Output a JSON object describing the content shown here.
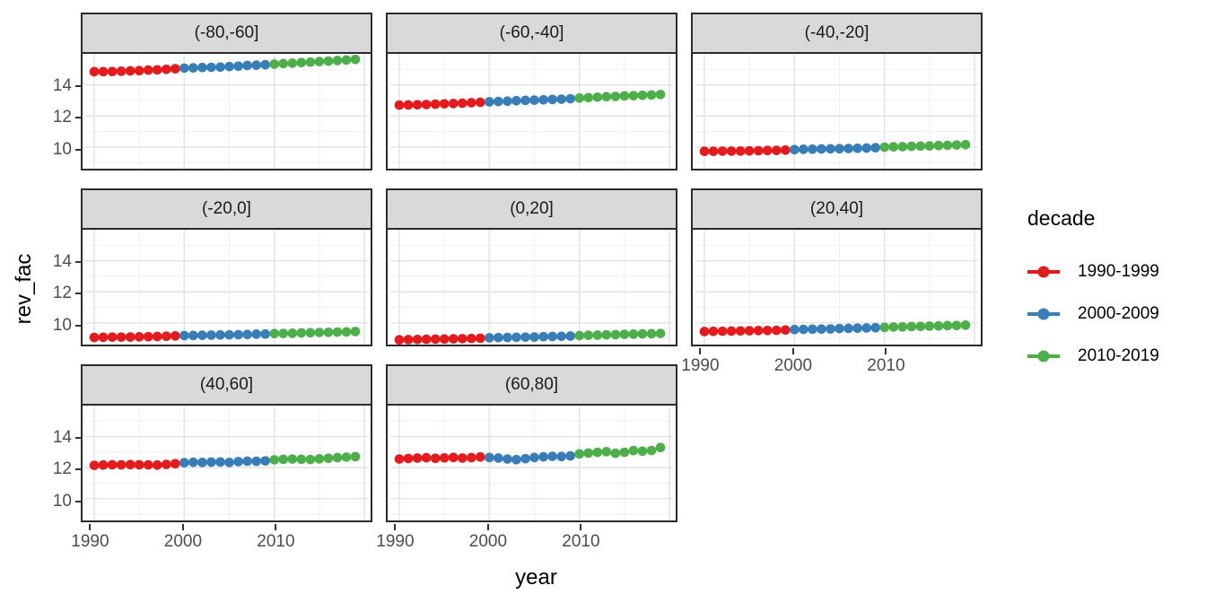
{
  "axes": {
    "x_label": "year",
    "y_label": "rev_fac",
    "x_tick_labels": [
      "1990",
      "2000",
      "2010"
    ],
    "y_tick_labels": [
      "14",
      "12",
      "10"
    ]
  },
  "legend": {
    "title": "decade",
    "entries": [
      {
        "label": "1990-1999",
        "color": "#E41A1C"
      },
      {
        "label": "2000-2009",
        "color": "#377EB8"
      },
      {
        "label": "2010-2019",
        "color": "#4DAF4A"
      }
    ]
  },
  "style": {
    "strip_fill": "#d9d9d9",
    "panel_border": "#2b2b2b",
    "grid_major_color": "#e4e4e4",
    "grid_minor_color": "#f1f1f1",
    "tick_label_color": "#4d4d4d",
    "point_red": "#E41A1C",
    "point_blue": "#377EB8",
    "point_green": "#4DAF4A"
  },
  "chart_data": {
    "type": "scatter",
    "title": "",
    "xlabel": "year",
    "ylabel": "rev_fac",
    "legend_title": "decade",
    "legend_position": "right",
    "grid": true,
    "x": [
      1990,
      1991,
      1992,
      1993,
      1994,
      1995,
      1996,
      1997,
      1998,
      1999,
      2000,
      2001,
      2002,
      2003,
      2004,
      2005,
      2006,
      2007,
      2008,
      2009,
      2010,
      2011,
      2012,
      2013,
      2014,
      2015,
      2016,
      2017,
      2018,
      2019
    ],
    "x_ticks": [
      1990,
      2000,
      2010
    ],
    "y_ticks": [
      10,
      12,
      14
    ],
    "x_major_gridlines": [
      1990,
      2000,
      2010,
      2020
    ],
    "x_minor_gridlines": [
      1995,
      2005,
      2015
    ],
    "y_major_gridlines": [
      10,
      12,
      14
    ],
    "y_minor_gridlines": [
      9,
      11,
      13,
      15
    ],
    "xlim": [
      1989.0,
      2020.4
    ],
    "ylim": [
      8.6,
      16.0
    ],
    "decade_groups": [
      {
        "name": "1990-1999",
        "years": [
          1990,
          1999
        ],
        "color": "#E41A1C"
      },
      {
        "name": "2000-2009",
        "years": [
          2000,
          2009
        ],
        "color": "#377EB8"
      },
      {
        "name": "2010-2019",
        "years": [
          2010,
          2019
        ],
        "color": "#4DAF4A"
      }
    ],
    "facets": [
      {
        "label": "(-80,-60]",
        "values": [
          14.85,
          14.85,
          14.86,
          14.88,
          14.9,
          14.92,
          14.95,
          14.97,
          15.0,
          15.04,
          15.08,
          15.1,
          15.12,
          15.13,
          15.15,
          15.18,
          15.21,
          15.25,
          15.27,
          15.3,
          15.34,
          15.37,
          15.4,
          15.44,
          15.47,
          15.5,
          15.53,
          15.57,
          15.6,
          15.64
        ]
      },
      {
        "label": "(-60,-40]",
        "values": [
          12.7,
          12.71,
          12.72,
          12.74,
          12.76,
          12.78,
          12.8,
          12.82,
          12.85,
          12.88,
          12.91,
          12.93,
          12.95,
          12.98,
          13.0,
          13.02,
          13.04,
          13.06,
          13.08,
          13.11,
          13.15,
          13.18,
          13.21,
          13.24,
          13.26,
          13.29,
          13.31,
          13.33,
          13.35,
          13.38
        ]
      },
      {
        "label": "(-40,-20]",
        "values": [
          9.72,
          9.72,
          9.73,
          9.73,
          9.74,
          9.75,
          9.76,
          9.77,
          9.78,
          9.8,
          9.83,
          9.85,
          9.86,
          9.87,
          9.88,
          9.89,
          9.9,
          9.92,
          9.93,
          9.95,
          9.99,
          10.01,
          10.02,
          10.04,
          10.06,
          10.07,
          10.09,
          10.11,
          10.13,
          10.15
        ]
      },
      {
        "label": "(-20,0]",
        "values": [
          9.06,
          9.07,
          9.08,
          9.08,
          9.09,
          9.1,
          9.11,
          9.12,
          9.14,
          9.16,
          9.18,
          9.19,
          9.2,
          9.21,
          9.22,
          9.23,
          9.24,
          9.25,
          9.27,
          9.28,
          9.31,
          9.32,
          9.33,
          9.35,
          9.36,
          9.38,
          9.39,
          9.41,
          9.42,
          9.44
        ]
      },
      {
        "label": "(0,20]",
        "values": [
          8.91,
          8.92,
          8.93,
          8.94,
          8.95,
          8.96,
          8.97,
          8.98,
          8.99,
          9.01,
          9.04,
          9.05,
          9.06,
          9.07,
          9.08,
          9.09,
          9.11,
          9.12,
          9.13,
          9.15,
          9.18,
          9.2,
          9.21,
          9.23,
          9.24,
          9.26,
          9.27,
          9.29,
          9.3,
          9.32
        ]
      },
      {
        "label": "(20,40]",
        "values": [
          9.44,
          9.45,
          9.46,
          9.47,
          9.48,
          9.49,
          9.5,
          9.51,
          9.52,
          9.54,
          9.57,
          9.58,
          9.59,
          9.6,
          9.61,
          9.63,
          9.64,
          9.66,
          9.67,
          9.69,
          9.71,
          9.73,
          9.74,
          9.76,
          9.77,
          9.79,
          9.8,
          9.82,
          9.83,
          9.85
        ]
      },
      {
        "label": "(40,60]",
        "values": [
          12.15,
          12.17,
          12.19,
          12.18,
          12.2,
          12.19,
          12.18,
          12.17,
          12.21,
          12.26,
          12.32,
          12.35,
          12.34,
          12.36,
          12.37,
          12.34,
          12.39,
          12.42,
          12.41,
          12.44,
          12.51,
          12.54,
          12.56,
          12.54,
          12.53,
          12.57,
          12.61,
          12.65,
          12.68,
          12.71
        ]
      },
      {
        "label": "(60,80]",
        "values": [
          12.56,
          12.59,
          12.62,
          12.64,
          12.6,
          12.63,
          12.66,
          12.62,
          12.65,
          12.69,
          12.66,
          12.62,
          12.56,
          12.52,
          12.58,
          12.66,
          12.7,
          12.73,
          12.72,
          12.76,
          12.89,
          12.94,
          12.99,
          13.03,
          12.93,
          12.99,
          13.1,
          13.06,
          13.11,
          13.3
        ]
      }
    ]
  }
}
